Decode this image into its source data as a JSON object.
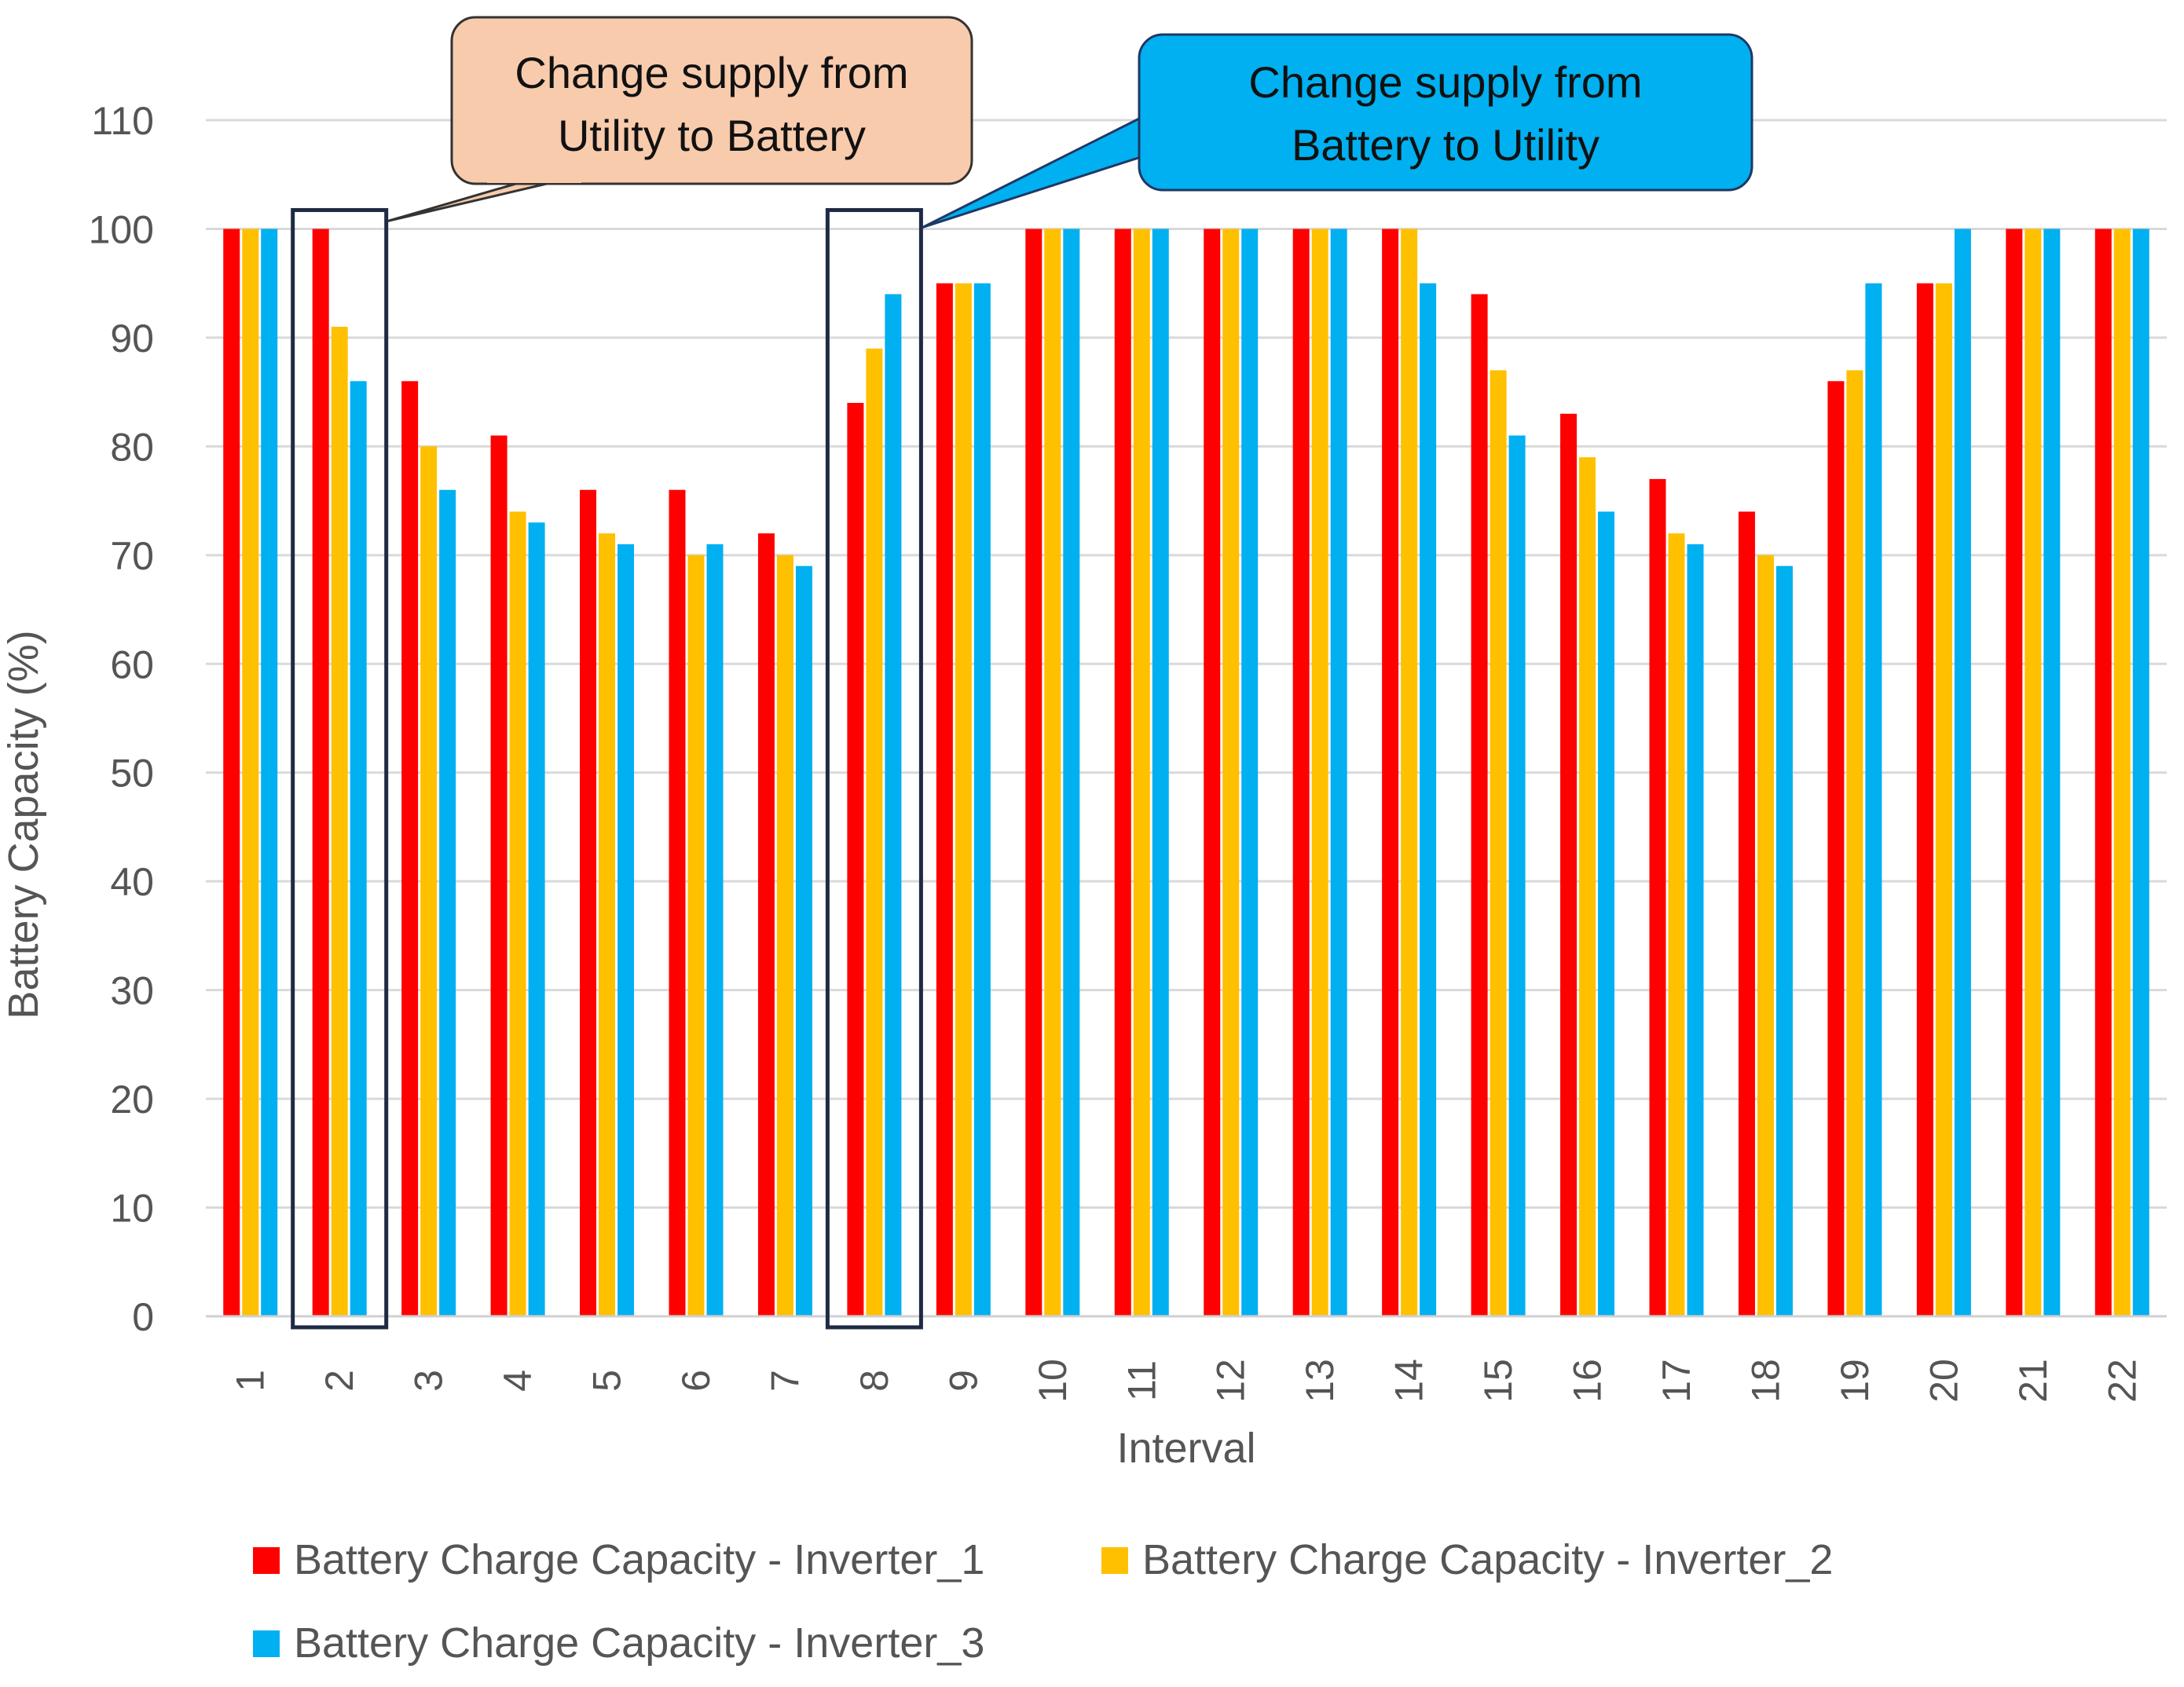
{
  "chart_data": {
    "type": "bar",
    "title": "",
    "xlabel": "Interval",
    "ylabel": "Battery Capacity (%)",
    "ylim": [
      0,
      110
    ],
    "yticks": [
      0,
      10,
      20,
      30,
      40,
      50,
      60,
      70,
      80,
      90,
      100,
      110
    ],
    "grid": true,
    "categories": [
      "1",
      "2",
      "3",
      "4",
      "5",
      "6",
      "7",
      "8",
      "9",
      "10",
      "11",
      "12",
      "13",
      "14",
      "15",
      "16",
      "17",
      "18",
      "19",
      "20",
      "21",
      "22"
    ],
    "series": [
      {
        "name": "Battery Charge Capacity - Inverter_1",
        "color": "#FF0000",
        "values": [
          100,
          100,
          86,
          81,
          76,
          76,
          72,
          84,
          95,
          100,
          100,
          100,
          100,
          100,
          94,
          83,
          77,
          74,
          86,
          95,
          100,
          100
        ]
      },
      {
        "name": "Battery Charge Capacity - Inverter_2",
        "color": "#FFC000",
        "values": [
          100,
          91,
          80,
          74,
          72,
          70,
          70,
          89,
          95,
          100,
          100,
          100,
          100,
          100,
          87,
          79,
          72,
          70,
          87,
          95,
          100,
          100
        ]
      },
      {
        "name": "Battery Charge Capacity - Inverter_3",
        "color": "#00B0F0",
        "values": [
          100,
          86,
          76,
          73,
          71,
          71,
          69,
          94,
          95,
          100,
          100,
          100,
          100,
          95,
          81,
          74,
          71,
          69,
          95,
          100,
          100,
          100
        ]
      }
    ],
    "legend_position": "bottom",
    "annotations": [
      {
        "text_line1": "Change supply from",
        "text_line2": "Utility to Battery",
        "highlight_category": "2",
        "fill": "#F8CBAD",
        "border": "#333333"
      },
      {
        "text_line1": "Change supply from",
        "text_line2": "Battery to Utility",
        "highlight_category": "8",
        "fill": "#00B0F0",
        "border": "#1F3864"
      }
    ]
  }
}
